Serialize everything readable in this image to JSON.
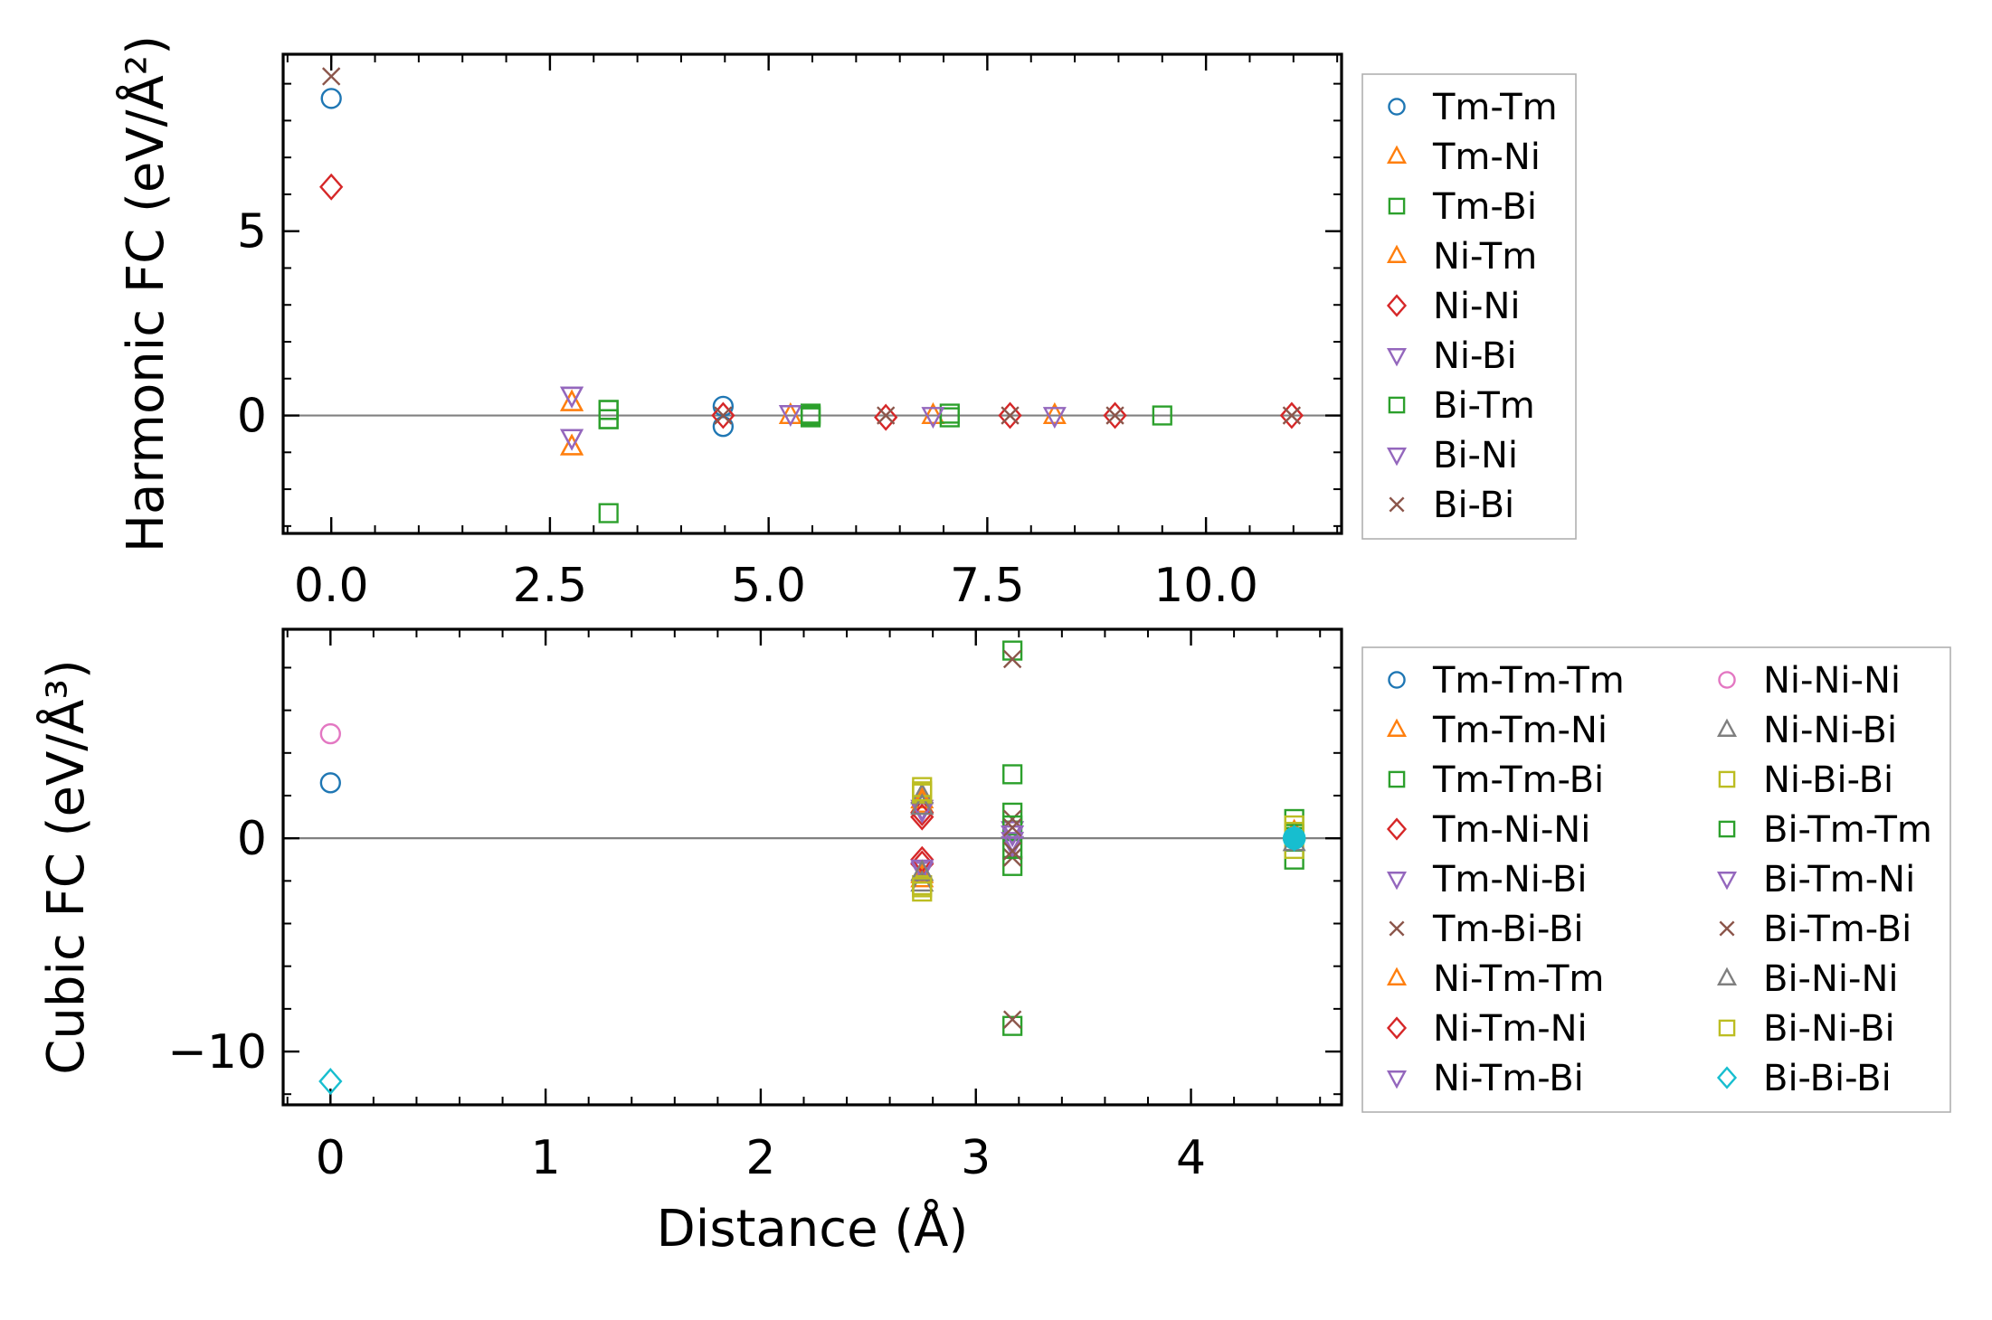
{
  "chart_data": [
    {
      "id": "harmonic",
      "type": "scatter",
      "ylabel": "Harmonic FC (eV/Å²)",
      "xlabel": "",
      "xlim": [
        -0.55,
        11.55
      ],
      "ylim": [
        -3.2,
        9.8
      ],
      "xticks": [
        0.0,
        2.5,
        5.0,
        7.5,
        10.0
      ],
      "xtick_labels": [
        "0.0",
        "2.5",
        "5.0",
        "7.5",
        "10.0"
      ],
      "yticks": [
        0,
        5
      ],
      "ytick_labels": [
        "0",
        "5"
      ],
      "x_minor_step": 0.5,
      "y_minor_step": 1,
      "zero_line": true,
      "legend_columns": 1,
      "series": [
        {
          "name": "Tm-Tm",
          "marker": "circle",
          "color": "#1f77b4",
          "points": [
            [
              0,
              8.6
            ],
            [
              4.48,
              0.25
            ],
            [
              4.48,
              -0.3
            ]
          ]
        },
        {
          "name": "Tm-Ni",
          "marker": "triangle-up",
          "color": "#ff7f0e",
          "points": [
            [
              2.75,
              0.35
            ],
            [
              2.75,
              -0.85
            ],
            [
              5.25,
              0
            ],
            [
              6.88,
              0
            ],
            [
              8.27,
              0
            ]
          ]
        },
        {
          "name": "Tm-Bi",
          "marker": "square",
          "color": "#2ca02c",
          "points": [
            [
              3.17,
              0.15
            ],
            [
              3.17,
              -0.1
            ],
            [
              3.17,
              -2.65
            ],
            [
              5.48,
              0.05
            ],
            [
              5.48,
              -0.05
            ],
            [
              7.07,
              0.05
            ],
            [
              7.07,
              -0.05
            ],
            [
              9.5,
              0
            ]
          ]
        },
        {
          "name": "Ni-Tm",
          "marker": "triangle-up",
          "color": "#ff7f0e",
          "points": [
            [
              2.75,
              0.35
            ],
            [
              2.75,
              -0.85
            ]
          ]
        },
        {
          "name": "Ni-Ni",
          "marker": "diamond",
          "color": "#d62728",
          "points": [
            [
              0,
              6.2
            ],
            [
              4.48,
              0
            ],
            [
              6.34,
              -0.05
            ],
            [
              7.76,
              0
            ],
            [
              8.96,
              0
            ],
            [
              10.98,
              0
            ]
          ]
        },
        {
          "name": "Ni-Bi",
          "marker": "triangle-down",
          "color": "#9467bd",
          "points": [
            [
              2.75,
              0.55
            ],
            [
              2.75,
              -0.6
            ],
            [
              5.25,
              0.05
            ],
            [
              6.88,
              0
            ],
            [
              8.27,
              0
            ]
          ]
        },
        {
          "name": "Bi-Tm",
          "marker": "square",
          "color": "#2ca02c",
          "points": [
            [
              3.17,
              0.15
            ],
            [
              3.17,
              -0.1
            ],
            [
              5.48,
              0
            ]
          ]
        },
        {
          "name": "Bi-Ni",
          "marker": "triangle-down",
          "color": "#9467bd",
          "points": [
            [
              2.75,
              0.55
            ],
            [
              2.75,
              -0.6
            ]
          ]
        },
        {
          "name": "Bi-Bi",
          "marker": "x",
          "color": "#8c564b",
          "points": [
            [
              0,
              9.2
            ],
            [
              4.48,
              0
            ],
            [
              6.34,
              0
            ],
            [
              7.76,
              0
            ],
            [
              8.96,
              0
            ],
            [
              10.98,
              0
            ]
          ]
        }
      ]
    },
    {
      "id": "cubic",
      "type": "scatter",
      "ylabel": "Cubic FC (eV/Å³)",
      "xlabel": "Distance (Å)",
      "xlim": [
        -0.22,
        4.7
      ],
      "ylim": [
        -12.5,
        9.8
      ],
      "xticks": [
        0,
        1,
        2,
        3,
        4
      ],
      "xtick_labels": [
        "0",
        "1",
        "2",
        "3",
        "4"
      ],
      "yticks": [
        -10,
        0
      ],
      "ytick_labels": [
        "−10",
        "0"
      ],
      "x_minor_step": 0.2,
      "y_minor_step": 2,
      "zero_line": true,
      "legend_columns": 2,
      "series": [
        {
          "name": "Tm-Tm-Tm",
          "marker": "circle",
          "color": "#1f77b4",
          "points": [
            [
              0,
              2.6
            ],
            [
              4.48,
              0
            ]
          ]
        },
        {
          "name": "Tm-Tm-Ni",
          "marker": "triangle-up",
          "color": "#ff7f0e",
          "points": [
            [
              2.75,
              1.6
            ],
            [
              2.75,
              -1.9
            ]
          ]
        },
        {
          "name": "Tm-Tm-Bi",
          "marker": "square",
          "color": "#2ca02c",
          "points": [
            [
              3.17,
              8.8
            ],
            [
              3.17,
              3.0
            ],
            [
              3.17,
              1.2
            ],
            [
              3.17,
              -1.3
            ],
            [
              3.17,
              -8.8
            ],
            [
              4.48,
              0.9
            ],
            [
              4.48,
              -1.0
            ]
          ]
        },
        {
          "name": "Tm-Ni-Ni",
          "marker": "diamond",
          "color": "#d62728",
          "points": [
            [
              2.75,
              1.2
            ],
            [
              2.75,
              -1.2
            ]
          ]
        },
        {
          "name": "Tm-Ni-Bi",
          "marker": "triangle-down",
          "color": "#9467bd",
          "points": [
            [
              2.75,
              1.4
            ],
            [
              2.75,
              -1.5
            ],
            [
              3.17,
              0.4
            ]
          ]
        },
        {
          "name": "Tm-Bi-Bi",
          "marker": "x",
          "color": "#8c564b",
          "points": [
            [
              3.17,
              8.4
            ],
            [
              3.17,
              0.9
            ],
            [
              3.17,
              -0.9
            ],
            [
              3.17,
              -8.5
            ]
          ]
        },
        {
          "name": "Ni-Tm-Tm",
          "marker": "triangle-up",
          "color": "#ff7f0e",
          "points": [
            [
              2.75,
              1.8
            ],
            [
              2.75,
              -1.7
            ],
            [
              4.48,
              0.3
            ]
          ]
        },
        {
          "name": "Ni-Tm-Ni",
          "marker": "diamond",
          "color": "#d62728",
          "points": [
            [
              2.75,
              1.0
            ],
            [
              2.75,
              -1.0
            ],
            [
              4.48,
              0
            ]
          ]
        },
        {
          "name": "Ni-Tm-Bi",
          "marker": "triangle-down",
          "color": "#9467bd",
          "points": [
            [
              2.75,
              1.3
            ],
            [
              2.75,
              -1.4
            ],
            [
              3.17,
              -0.3
            ]
          ]
        },
        {
          "name": "Ni-Ni-Ni",
          "marker": "circle",
          "color": "#e377c2",
          "points": [
            [
              0,
              4.9
            ]
          ]
        },
        {
          "name": "Ni-Ni-Bi",
          "marker": "triangle-up",
          "color": "#7f7f7f",
          "points": [
            [
              2.75,
              2.0
            ],
            [
              2.75,
              -2.1
            ]
          ]
        },
        {
          "name": "Ni-Bi-Bi",
          "marker": "square",
          "color": "#bcbd22",
          "points": [
            [
              2.75,
              2.4
            ],
            [
              2.75,
              2.1
            ],
            [
              2.75,
              -2.2
            ],
            [
              2.75,
              -2.5
            ],
            [
              4.48,
              0.6
            ],
            [
              4.48,
              -0.5
            ]
          ]
        },
        {
          "name": "Bi-Tm-Tm",
          "marker": "square",
          "color": "#2ca02c",
          "points": [
            [
              3.17,
              0.6
            ],
            [
              3.17,
              -0.5
            ],
            [
              4.48,
              0.2
            ]
          ]
        },
        {
          "name": "Bi-Tm-Ni",
          "marker": "triangle-down",
          "color": "#9467bd",
          "points": [
            [
              3.17,
              0.2
            ],
            [
              3.17,
              -0.1
            ]
          ]
        },
        {
          "name": "Bi-Tm-Bi",
          "marker": "x",
          "color": "#8c564b",
          "points": [
            [
              3.17,
              0.5
            ],
            [
              3.17,
              -0.6
            ],
            [
              4.48,
              0
            ]
          ]
        },
        {
          "name": "Bi-Ni-Ni",
          "marker": "triangle-up",
          "color": "#7f7f7f",
          "points": [
            [
              2.75,
              1.5
            ],
            [
              2.75,
              -1.6
            ],
            [
              4.48,
              -0.2
            ]
          ]
        },
        {
          "name": "Bi-Ni-Bi",
          "marker": "square",
          "color": "#bcbd22",
          "points": [
            [
              2.75,
              2.2
            ],
            [
              2.75,
              -2.3
            ],
            [
              4.48,
              0.3
            ]
          ]
        },
        {
          "name": "Bi-Bi-Bi",
          "marker": "diamond",
          "color": "#17becf",
          "points": [
            [
              0,
              -11.4
            ],
            [
              4.48,
              0
            ]
          ]
        },
        {
          "name": "Bi-Bi-Bi",
          "marker": "filled-circle",
          "color": "#17becf",
          "legend": false,
          "points": [
            [
              4.48,
              0
            ]
          ]
        }
      ]
    }
  ]
}
